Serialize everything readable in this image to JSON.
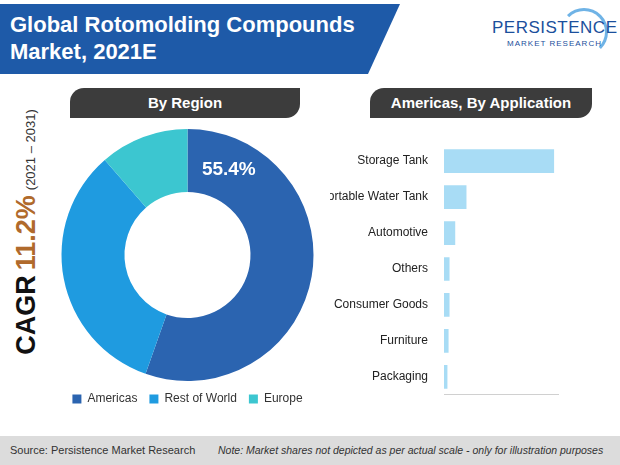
{
  "header": {
    "title": [
      "Global Rotomolding Compounds",
      "Market, 2021E"
    ],
    "logo": [
      "PERSISTENCE",
      "MARKET RESEARCH"
    ]
  },
  "cagr": {
    "label": "CAGR",
    "value": "11.2%",
    "period": "(2021 – 2031)"
  },
  "footer": {
    "source": "Source: Persistence Market Research",
    "note": "Note: Market shares not depicted as per actual scale - only for illustration purposes"
  },
  "chart_data": [
    {
      "type": "doughnut",
      "title": "By Region",
      "categories": [
        "Americas",
        "Rest of World",
        "Europe"
      ],
      "values": [
        55.4,
        33.2,
        11.4
      ],
      "colors": [
        "#2b64b0",
        "#1f9be0",
        "#3cc6d0"
      ],
      "data_labels": true,
      "value_labels": [
        "55.4%",
        null,
        null
      ],
      "legend": "bottom"
    },
    {
      "type": "bar",
      "title": "Americas, By Application",
      "orientation": "horizontal",
      "categories": [
        "Storage Tank",
        "Portable Water Tank",
        "Automotive",
        "Others",
        "Consumer Goods",
        "Furniture",
        "Packaging"
      ],
      "values": [
        67.6,
        13.8,
        6.9,
        3.4,
        3.4,
        2.8,
        2.1
      ],
      "color": "#a8dcf5",
      "xlim": [
        0,
        70
      ],
      "tick_labels": "y",
      "grid": false,
      "legend": "none"
    }
  ]
}
